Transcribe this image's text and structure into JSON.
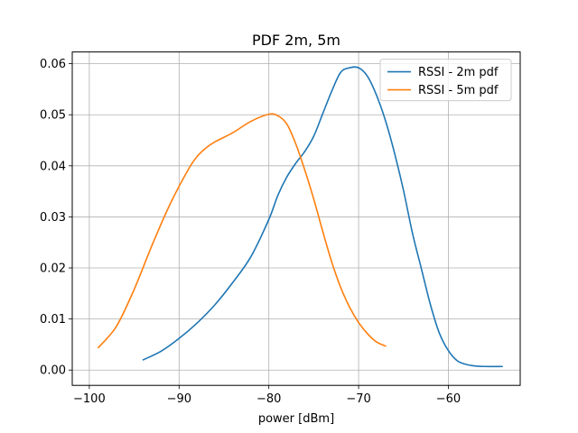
{
  "chart_data": {
    "type": "line",
    "title": "PDF 2m, 5m",
    "xlabel": "power [dBm]",
    "ylabel": "",
    "xlim": [
      -101.9,
      -52.0
    ],
    "ylim": [
      -0.003,
      0.0623
    ],
    "grid": true,
    "legend_position": "top-right",
    "x_ticks": [
      -100,
      -90,
      -80,
      -70,
      -60
    ],
    "y_ticks": [
      0.0,
      0.01,
      0.02,
      0.03,
      0.04,
      0.05,
      0.06
    ],
    "x_tick_labels": [
      "−100",
      "−90",
      "−80",
      "−70",
      "−60"
    ],
    "y_tick_labels": [
      "0.00",
      "0.01",
      "0.02",
      "0.03",
      "0.04",
      "0.05",
      "0.06"
    ],
    "series": [
      {
        "name": "RSSI - 2m pdf",
        "color": "#1f77b4",
        "x": [
          -94,
          -92,
          -90,
          -88,
          -86,
          -84,
          -82,
          -80,
          -79,
          -78,
          -77,
          -76,
          -75,
          -74,
          -73,
          -72,
          -71,
          -70,
          -69,
          -68,
          -67,
          -66,
          -65,
          -64,
          -63,
          -62,
          -61,
          -60,
          -59,
          -58,
          -57,
          -56,
          -54
        ],
        "y": [
          0.002,
          0.0037,
          0.0062,
          0.0092,
          0.0128,
          0.0172,
          0.0222,
          0.0295,
          0.0342,
          0.0378,
          0.0405,
          0.0428,
          0.0458,
          0.0502,
          0.0546,
          0.0583,
          0.0592,
          0.0592,
          0.0575,
          0.0538,
          0.0488,
          0.0425,
          0.0352,
          0.0268,
          0.0198,
          0.0128,
          0.0072,
          0.0038,
          0.0018,
          0.0011,
          0.0008,
          0.0007,
          0.0007
        ]
      },
      {
        "name": "RSSI - 5m pdf",
        "color": "#ff7f0e",
        "x": [
          -99,
          -97,
          -95,
          -93,
          -91,
          -89,
          -88,
          -87,
          -86,
          -84,
          -82,
          -80,
          -79,
          -78,
          -77,
          -76,
          -75,
          -74,
          -73,
          -72,
          -71,
          -70,
          -69,
          -68,
          -67
        ],
        "y": [
          0.0044,
          0.0085,
          0.0158,
          0.0245,
          0.0325,
          0.0392,
          0.0418,
          0.0435,
          0.0447,
          0.0465,
          0.0487,
          0.0501,
          0.0498,
          0.0482,
          0.0443,
          0.0392,
          0.0335,
          0.0272,
          0.0212,
          0.0162,
          0.0123,
          0.0093,
          0.0071,
          0.0055,
          0.0047
        ]
      }
    ]
  }
}
